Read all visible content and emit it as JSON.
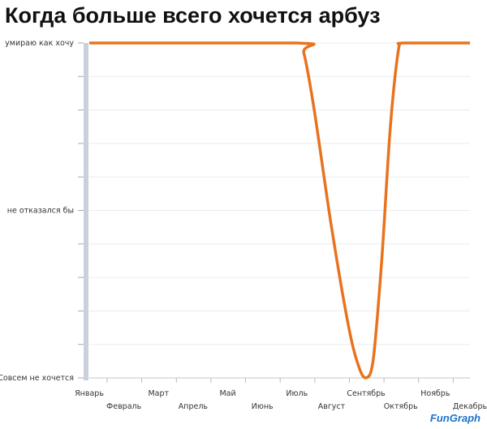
{
  "chart_data": {
    "type": "line",
    "title": "Когда больше всего хочется арбуз",
    "categories": [
      "Январь",
      "Февраль",
      "Март",
      "Апрель",
      "Май",
      "Июнь",
      "Июль",
      "Август",
      "Сентябрь",
      "Октябрь",
      "Ноябрь",
      "Декабрь"
    ],
    "y_ticks": [
      {
        "value": 0,
        "label": "Совсем не хочется"
      },
      {
        "value": 0.5,
        "label": "не отказался бы"
      },
      {
        "value": 1,
        "label": "умираю как хочу"
      }
    ],
    "ylim": [
      0,
      1
    ],
    "grid": true,
    "series": [
      {
        "color": "#e8731e",
        "points": [
          [
            0,
            1
          ],
          [
            6,
            1
          ],
          [
            6.2,
            0.97
          ],
          [
            6.5,
            0.8
          ],
          [
            7,
            0.45
          ],
          [
            7.5,
            0.15
          ],
          [
            7.8,
            0.03
          ],
          [
            8,
            0
          ],
          [
            8.2,
            0.05
          ],
          [
            8.45,
            0.35
          ],
          [
            8.7,
            0.75
          ],
          [
            8.95,
            0.99
          ],
          [
            9.1,
            1
          ],
          [
            11,
            1
          ]
        ]
      }
    ]
  },
  "logo": "FunGraph"
}
